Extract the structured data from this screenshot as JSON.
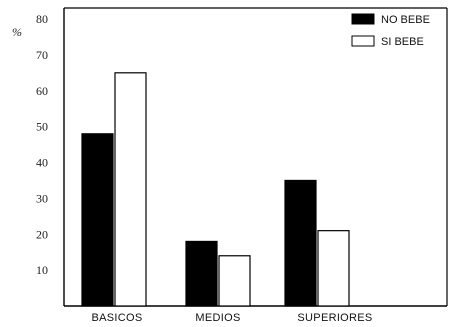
{
  "chart_data": {
    "type": "bar",
    "categories": [
      "BASICOS",
      "MEDIOS",
      "SUPERIORES"
    ],
    "series": [
      {
        "name": "NO BEBE",
        "values": [
          48,
          18,
          35
        ],
        "color": "#000000"
      },
      {
        "name": "SI BEBE",
        "values": [
          65,
          14,
          21
        ],
        "color": "#ffffff"
      }
    ],
    "unit_label": "%",
    "ylim": [
      0,
      80
    ],
    "yticks": [
      10,
      20,
      30,
      40,
      50,
      60,
      70,
      80
    ],
    "grid": false,
    "legend_position": "top-right"
  }
}
